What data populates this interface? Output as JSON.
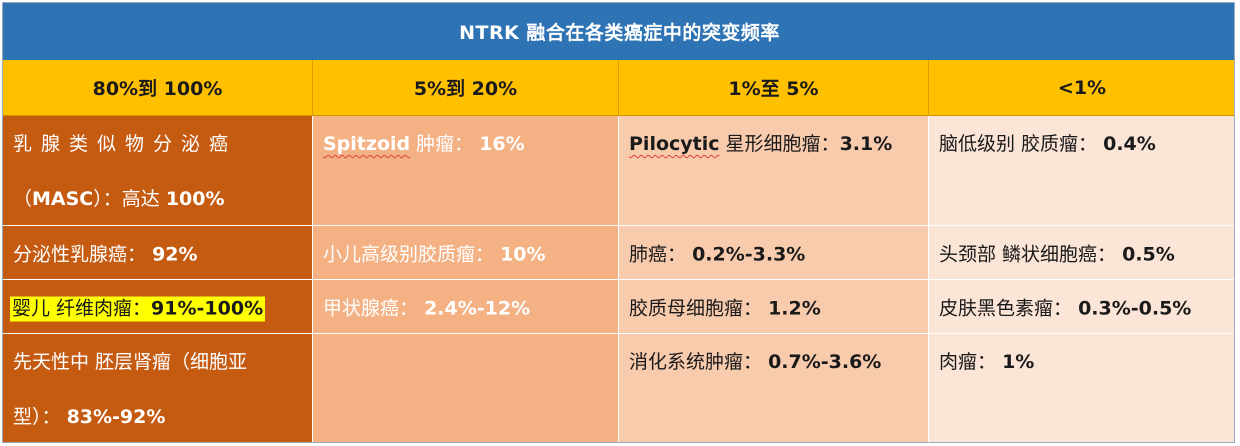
{
  "title": "NTRK 融合在各类癌症中的突变频率",
  "headers": [
    "80%到 100%",
    "5%到 20%",
    "1%至 5%",
    "<1%"
  ],
  "col1": {
    "masc_line1": "乳腺类似物分泌癌",
    "masc_line2_prefix": "（",
    "masc_line2_term": "MASC",
    "masc_line2_mid": "）：高达 ",
    "masc_line2_value": "100%",
    "secretory_label": "分泌性乳腺癌：",
    "secretory_value": "92%",
    "infantile_label": "婴儿 纤维肉瘤：",
    "infantile_value": "91%-100%",
    "cmn_line1": "先天性中 胚层肾瘤（细胞亚",
    "cmn_line2_label": "型）：",
    "cmn_line2_value": "83%-92%"
  },
  "col2": {
    "spitzoid_term": "Spitzoid",
    "spitzoid_label": " 肿瘤：",
    "spitzoid_value": "16%",
    "glioma_label": "小儿高级别胶质瘤：",
    "glioma_value": "10%",
    "thyroid_label": "甲状腺癌：",
    "thyroid_value": "2.4%-12%"
  },
  "col3": {
    "pilocytic_term": "Pilocytic",
    "pilocytic_label": " 星形细胞瘤：",
    "pilocytic_value": "3.1%",
    "lung_label": "肺癌：",
    "lung_value": "0.2%-3.3%",
    "gbm_label": "胶质母细胞瘤：",
    "gbm_value": "1.2%",
    "digestive_label": "消化系统肿瘤：",
    "digestive_value": "0.7%-3.6%"
  },
  "col4": {
    "lgg_label": "脑低级别 胶质瘤：",
    "lgg_value": "0.4%",
    "hnscc_label": "头颈部 鳞状细胞癌：",
    "hnscc_value": "0.5%",
    "melanoma_label": "皮肤黑色素瘤：",
    "melanoma_value": "0.3%-0.5%",
    "sarcoma_label": "肉瘤：",
    "sarcoma_value": "1%"
  },
  "colors": {
    "title_bg": "#2e74b5",
    "header_bg": "#ffc000",
    "col1_bg": "#c55a11",
    "col2_bg": "#f4b183",
    "col3_bg": "#f8cbad",
    "col4_bg": "#fbe5d6",
    "highlight": "#ffff00"
  }
}
